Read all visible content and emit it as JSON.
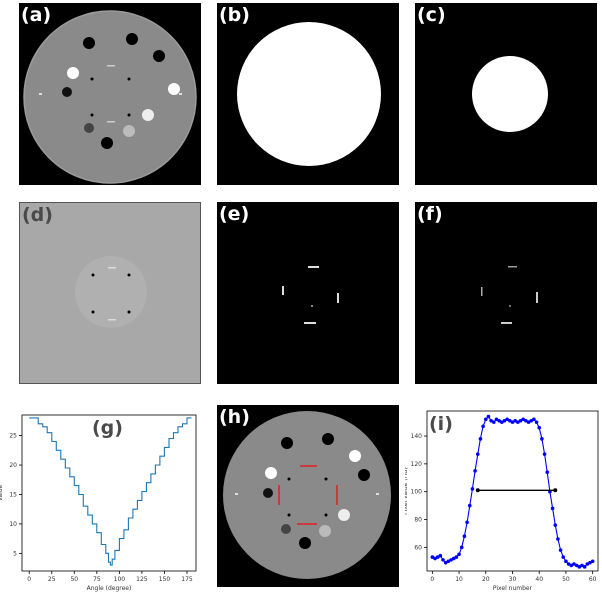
{
  "figure": {
    "labels": {
      "a": "(a)",
      "b": "(b)",
      "c": "(c)",
      "d": "(d)",
      "e": "(e)",
      "f": "(f)",
      "g": "(g)",
      "h": "(h)",
      "i": "(i)"
    }
  },
  "colors": {
    "background_black": "#000000",
    "phantom_gray": "#8a8a8a",
    "panel_d_gray": "#a8a8a8",
    "plot_g_line": "#1f77b4",
    "plot_i_line": "#0000ff",
    "annotation_red": "#e02020"
  },
  "chart_data": [
    {
      "panel": "g",
      "type": "line",
      "title": "",
      "xlabel": "Angle (degree)",
      "ylabel": "Value",
      "xlim": [
        -8,
        185
      ],
      "ylim": [
        2,
        28.5
      ],
      "xticks": [
        0,
        25,
        50,
        75,
        100,
        125,
        150,
        175
      ],
      "yticks": [
        5,
        10,
        15,
        20,
        25
      ],
      "grid": false,
      "series": [
        {
          "x": [
            0,
            5,
            10,
            15,
            20,
            25,
            30,
            35,
            40,
            45,
            50,
            55,
            60,
            65,
            70,
            75,
            80,
            85,
            88,
            90,
            92,
            95,
            100,
            105,
            110,
            115,
            120,
            125,
            130,
            135,
            140,
            145,
            150,
            155,
            160,
            165,
            170,
            175,
            180
          ],
          "y": [
            28,
            28,
            27,
            26.5,
            25.5,
            24,
            22.5,
            21,
            19.5,
            18,
            16.5,
            15,
            13,
            11.5,
            10,
            8.5,
            6.5,
            5,
            3.5,
            3,
            4,
            5.5,
            7.5,
            9,
            11,
            12.5,
            14,
            15.5,
            17,
            18.5,
            20,
            21.5,
            23,
            24.5,
            25.5,
            26.5,
            27,
            28,
            28
          ]
        }
      ]
    },
    {
      "panel": "i",
      "type": "line",
      "title": "",
      "xlabel": "Pixel number",
      "ylabel": "Pixel value (HU)",
      "xlim": [
        -2,
        62
      ],
      "ylim": [
        43,
        158
      ],
      "xticks": [
        0,
        10,
        20,
        30,
        40,
        50,
        60
      ],
      "yticks": [
        60,
        80,
        100,
        120,
        140
      ],
      "grid": false,
      "series": [
        {
          "x": [
            0,
            1,
            2,
            3,
            4,
            5,
            6,
            7,
            8,
            9,
            10,
            11,
            12,
            13,
            14,
            15,
            16,
            17,
            18,
            19,
            20,
            21,
            22,
            23,
            24,
            25,
            26,
            27,
            28,
            29,
            30,
            31,
            32,
            33,
            34,
            35,
            36,
            37,
            38,
            39,
            40,
            41,
            42,
            43,
            44,
            45,
            46,
            47,
            48,
            49,
            50,
            51,
            52,
            53,
            54,
            55,
            56,
            57,
            58,
            59,
            60
          ],
          "y": [
            53,
            52,
            53,
            54,
            51,
            49,
            50,
            51,
            52,
            53,
            55,
            60,
            68,
            78,
            90,
            102,
            115,
            127,
            138,
            147,
            152,
            154,
            151,
            150,
            152,
            151,
            150,
            151,
            152,
            151,
            150,
            151,
            150,
            151,
            152,
            151,
            150,
            151,
            152,
            150,
            146,
            138,
            127,
            114,
            100,
            88,
            76,
            66,
            58,
            53,
            50,
            48,
            47,
            48,
            47,
            46,
            47,
            46,
            48,
            49,
            50
          ]
        },
        {
          "name": "",
          "x": [
            17,
            46
          ],
          "y": [
            101,
            101
          ]
        }
      ]
    }
  ]
}
